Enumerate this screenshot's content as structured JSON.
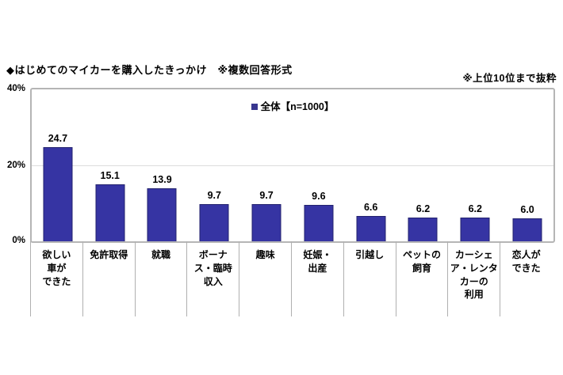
{
  "title": "◆はじめてのマイカーを購入したきっかけ　※複数回答形式",
  "note": "※上位10位まで抜粋",
  "legend": {
    "label": "全体【n=1000】"
  },
  "y_axis": {
    "ticks": [
      "40%",
      "20%",
      "0%"
    ]
  },
  "colors": {
    "bar": "#3634a3",
    "bar_border": "#23226e",
    "legend_marker": "#38368f",
    "gridline": "#dcdcdc",
    "plot_border": "#b5b5b5"
  },
  "chart_data": {
    "type": "bar",
    "title": "はじめてのマイカーを購入したきっかけ（複数回答形式・上位10位まで抜粋）",
    "series_name": "全体【n=1000】",
    "categories": [
      "欲しい車ができた",
      "免許取得",
      "就職",
      "ボーナス・臨時収入",
      "趣味",
      "妊娠・出産",
      "引越し",
      "ペットの飼育",
      "カーシェア・レンタカーの利用",
      "恋人ができた"
    ],
    "category_display": [
      "欲しい\n車が\nできた",
      "免許取得",
      "就職",
      "ボーナ\nス・臨時\n収入",
      "趣味",
      "妊娠・\n出産",
      "引越し",
      "ペットの\n飼育",
      "カーシェ\nア・レンタ\nカーの\n利用",
      "恋人が\nできた"
    ],
    "values": [
      24.7,
      15.1,
      13.9,
      9.7,
      9.7,
      9.6,
      6.6,
      6.2,
      6.2,
      6.0
    ],
    "unit": "%",
    "ylim": [
      0,
      40
    ],
    "yticks": [
      0,
      20,
      40
    ],
    "grid": "horizontal",
    "legend_position": "top-center"
  }
}
